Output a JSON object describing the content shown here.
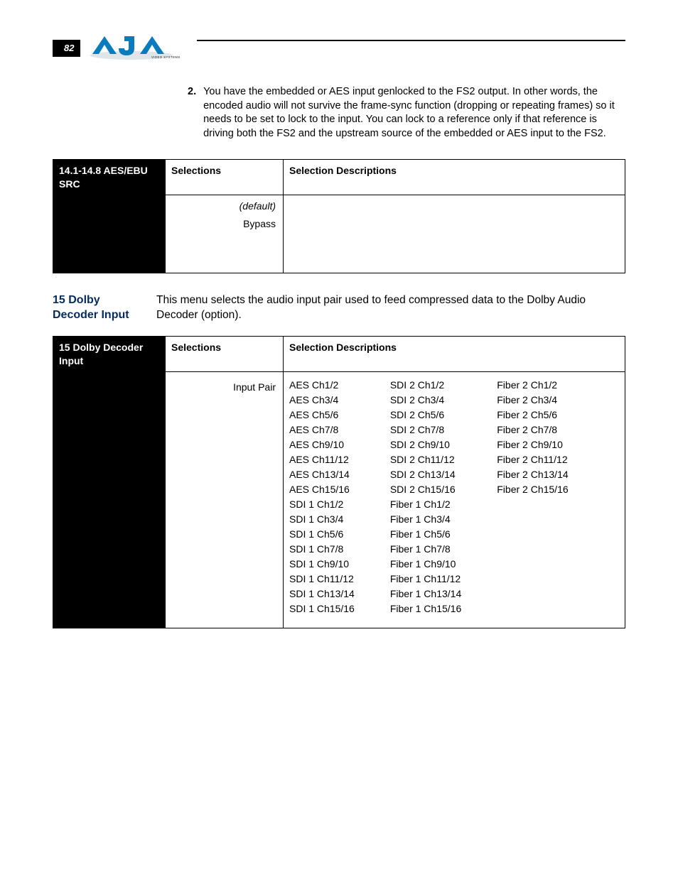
{
  "page_number": "82",
  "intro_item": {
    "number": "2.",
    "text": "You have the embedded or AES input genlocked to the FS2 output. In other words, the encoded audio will not survive the frame-sync function (dropping or repeating frames) so it needs to be set to lock to the input. You can lock to a reference only if that reference is driving both the FS2 and the upstream source of the embedded or AES input to the FS2."
  },
  "table1": {
    "title": "14.1-14.8 AES/EBU SRC",
    "col_selections": "Selections",
    "col_desc": "Selection Descriptions",
    "row1_sel": "(default)",
    "row2_sel": "Bypass"
  },
  "section": {
    "title": "15 Dolby Decoder Input",
    "body": "This menu selects the audio input pair used to feed compressed data to the Dolby Audio Decoder (option)."
  },
  "table2": {
    "title": "15 Dolby Decoder Input",
    "col_selections": "Selections",
    "col_desc": "Selection Descriptions",
    "sel_label": "Input Pair",
    "channels": {
      "col1": [
        "AES Ch1/2",
        "AES Ch3/4",
        "AES Ch5/6",
        "AES Ch7/8",
        "AES Ch9/10",
        "AES Ch11/12",
        "AES Ch13/14",
        "AES Ch15/16",
        "SDI 1 Ch1/2",
        "SDI 1 Ch3/4",
        "SDI 1 Ch5/6",
        "SDI 1 Ch7/8",
        "SDI 1 Ch9/10",
        "SDI 1 Ch11/12",
        "SDI 1 Ch13/14",
        "SDI 1 Ch15/16"
      ],
      "col2": [
        "SDI 2 Ch1/2",
        "SDI 2 Ch3/4",
        "SDI 2 Ch5/6",
        "SDI 2 Ch7/8",
        "SDI 2 Ch9/10",
        "SDI 2 Ch11/12",
        "SDI 2 Ch13/14",
        "SDI 2 Ch15/16",
        "Fiber 1 Ch1/2",
        "Fiber 1 Ch3/4",
        "Fiber 1 Ch5/6",
        "Fiber 1 Ch7/8",
        "Fiber 1 Ch9/10",
        "Fiber 1 Ch11/12",
        "Fiber 1 Ch13/14",
        "Fiber 1 Ch15/16"
      ],
      "col3": [
        "Fiber 2 Ch1/2",
        "Fiber 2 Ch3/4",
        "Fiber 2 Ch5/6",
        "Fiber 2 Ch7/8",
        "Fiber 2 Ch9/10",
        "Fiber 2 Ch11/12",
        "Fiber 2 Ch13/14",
        "Fiber 2 Ch15/16"
      ]
    }
  },
  "colors": {
    "section_title": "#052a5c",
    "logo_blue": "#0a7bbf",
    "logo_shadow": "#b9c3c8"
  }
}
